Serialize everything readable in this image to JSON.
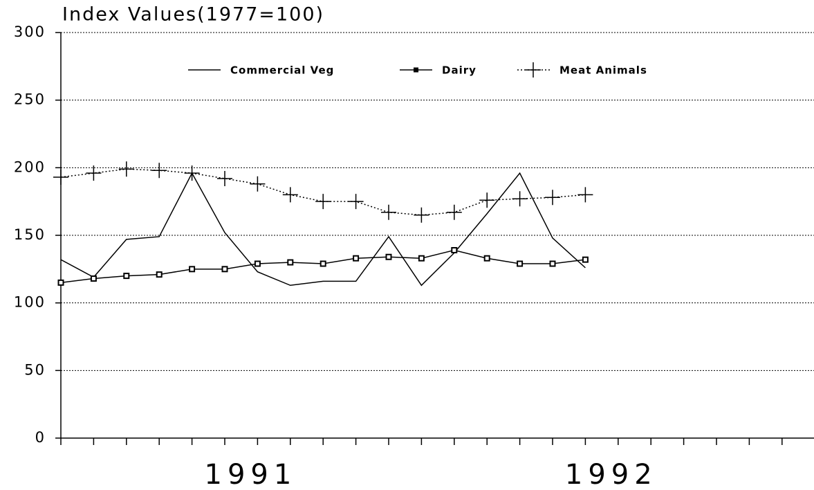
{
  "chart_data": {
    "type": "line",
    "title": "Index Values(1977=100)",
    "categories": [
      null,
      null,
      null,
      null,
      null,
      null,
      "1991",
      null,
      null,
      null,
      null,
      null,
      null,
      null,
      null,
      null,
      null,
      "1992",
      null,
      null,
      null,
      null,
      null
    ],
    "series": [
      {
        "name": "Commercial Veg",
        "color": "#000000",
        "style": "solid",
        "marker": "none",
        "values": [
          132,
          119,
          147,
          149,
          196,
          152,
          123,
          113,
          116,
          116,
          149,
          113,
          137,
          166,
          196,
          148,
          126,
          null,
          null,
          null,
          null,
          null,
          null
        ]
      },
      {
        "name": "Dairy",
        "color": "#000000",
        "style": "solid",
        "marker": "square",
        "values": [
          115,
          118,
          120,
          121,
          125,
          125,
          129,
          130,
          129,
          133,
          134,
          133,
          139,
          133,
          129,
          129,
          132,
          null,
          null,
          null,
          null,
          null,
          null
        ]
      },
      {
        "name": "Meat Animals",
        "color": "#000000",
        "style": "dotted",
        "marker": "plus",
        "values": [
          193,
          196,
          199,
          198,
          196,
          192,
          188,
          180,
          175,
          175,
          167,
          165,
          167,
          176,
          177,
          178,
          180,
          null,
          null,
          null,
          null,
          null,
          null
        ]
      }
    ],
    "ylim": [
      0,
      300
    ],
    "yticks": [
      0,
      50,
      100,
      150,
      200,
      250,
      300
    ],
    "grid": true,
    "legend": "top"
  }
}
